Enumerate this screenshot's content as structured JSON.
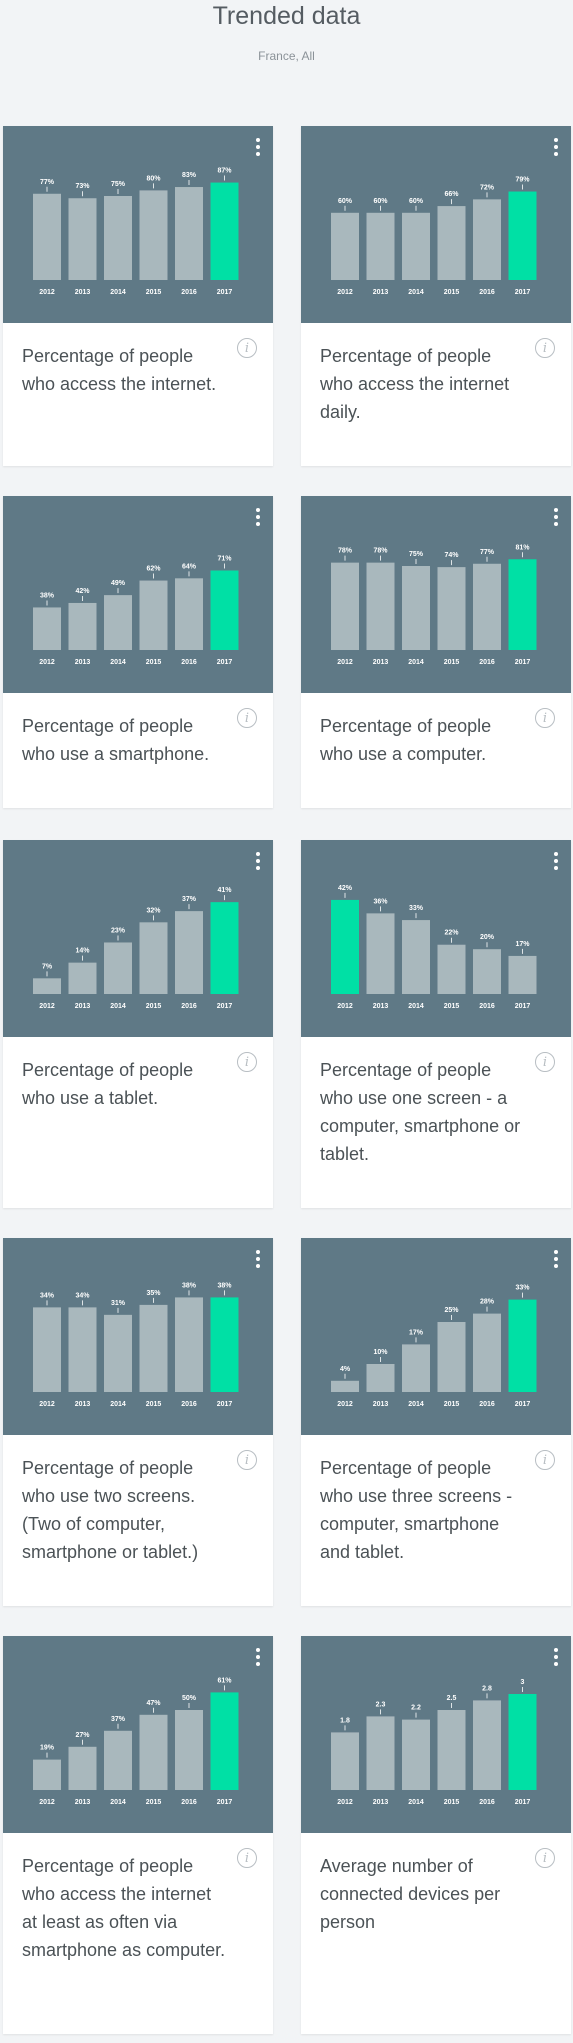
{
  "header": {
    "title": "Trended data",
    "subtitle": "France, All"
  },
  "colors": {
    "chart_bg": "#5f7986",
    "bar": "#a9b8bd",
    "highlight": "#00e0a5"
  },
  "icons": {
    "menu": "more-vert-icon",
    "info": "info-icon"
  },
  "info_symbol": "i",
  "cards": [
    {
      "description": "Percentage of people who access the internet."
    },
    {
      "description": "Percentage of people who access the internet daily."
    },
    {
      "description": "Percentage of people who use a smartphone."
    },
    {
      "description": "Percentage of people who use a computer."
    },
    {
      "description": "Percentage of people who use a tablet."
    },
    {
      "description": "Percentage of people who use one screen - a computer, smartphone or tablet."
    },
    {
      "description": "Percentage of people who use two screens. (Two of computer, smartphone or tablet.)"
    },
    {
      "description": "Percentage of people who use three screens - computer, smartphone and tablet."
    },
    {
      "description": "Percentage of people who access the internet at least as often via smartphone as computer."
    },
    {
      "description": "Average number of connected devices per person"
    }
  ],
  "chart_data": [
    {
      "type": "bar",
      "categories": [
        "2012",
        "2013",
        "2014",
        "2015",
        "2016",
        "2017"
      ],
      "values": [
        77,
        73,
        75,
        80,
        83,
        87
      ],
      "labels": [
        "77%",
        "73%",
        "75%",
        "80%",
        "83%",
        "87%"
      ],
      "highlight": 5,
      "ylim": [
        0,
        100
      ]
    },
    {
      "type": "bar",
      "categories": [
        "2012",
        "2013",
        "2014",
        "2015",
        "2016",
        "2017"
      ],
      "values": [
        60,
        60,
        60,
        66,
        72,
        79
      ],
      "labels": [
        "60%",
        "60%",
        "60%",
        "66%",
        "72%",
        "79%"
      ],
      "highlight": 5,
      "ylim": [
        0,
        100
      ]
    },
    {
      "type": "bar",
      "categories": [
        "2012",
        "2013",
        "2014",
        "2015",
        "2016",
        "2017"
      ],
      "values": [
        38,
        42,
        49,
        62,
        64,
        71
      ],
      "labels": [
        "38%",
        "42%",
        "49%",
        "62%",
        "64%",
        "71%"
      ],
      "highlight": 5,
      "ylim": [
        0,
        100
      ]
    },
    {
      "type": "bar",
      "categories": [
        "2012",
        "2013",
        "2014",
        "2015",
        "2016",
        "2017"
      ],
      "values": [
        78,
        78,
        75,
        74,
        77,
        81
      ],
      "labels": [
        "78%",
        "78%",
        "75%",
        "74%",
        "77%",
        "81%"
      ],
      "highlight": 5,
      "ylim": [
        0,
        100
      ]
    },
    {
      "type": "bar",
      "categories": [
        "2012",
        "2013",
        "2014",
        "2015",
        "2016",
        "2017"
      ],
      "values": [
        7,
        14,
        23,
        32,
        37,
        41
      ],
      "labels": [
        "7%",
        "14%",
        "23%",
        "32%",
        "37%",
        "41%"
      ],
      "highlight": 5,
      "ylim": [
        0,
        50
      ]
    },
    {
      "type": "bar",
      "categories": [
        "2012",
        "2013",
        "2014",
        "2015",
        "2016",
        "2017"
      ],
      "values": [
        42,
        36,
        33,
        22,
        20,
        17
      ],
      "labels": [
        "42%",
        "36%",
        "33%",
        "22%",
        "20%",
        "17%"
      ],
      "highlight": 0,
      "ylim": [
        0,
        50
      ]
    },
    {
      "type": "bar",
      "categories": [
        "2012",
        "2013",
        "2014",
        "2015",
        "2016",
        "2017"
      ],
      "values": [
        34,
        34,
        31,
        35,
        38,
        38
      ],
      "labels": [
        "34%",
        "34%",
        "31%",
        "35%",
        "38%",
        "38%"
      ],
      "highlight": 5,
      "ylim": [
        0,
        45
      ]
    },
    {
      "type": "bar",
      "categories": [
        "2012",
        "2013",
        "2014",
        "2015",
        "2016",
        "2017"
      ],
      "values": [
        4,
        10,
        17,
        25,
        28,
        33
      ],
      "labels": [
        "4%",
        "10%",
        "17%",
        "25%",
        "28%",
        "33%"
      ],
      "highlight": 5,
      "ylim": [
        0,
        40
      ]
    },
    {
      "type": "bar",
      "categories": [
        "2012",
        "2013",
        "2014",
        "2015",
        "2016",
        "2017"
      ],
      "values": [
        19,
        27,
        37,
        47,
        50,
        61
      ],
      "labels": [
        "19%",
        "27%",
        "37%",
        "47%",
        "50%",
        "61%"
      ],
      "highlight": 5,
      "ylim": [
        0,
        70
      ]
    },
    {
      "type": "bar",
      "categories": [
        "2012",
        "2013",
        "2014",
        "2015",
        "2016",
        "2017"
      ],
      "values": [
        1.8,
        2.3,
        2.2,
        2.5,
        2.8,
        3
      ],
      "labels": [
        "1.8",
        "2.3",
        "2.2",
        "2.5",
        "2.8",
        "3"
      ],
      "highlight": 5,
      "ylim": [
        0,
        3.5
      ]
    }
  ]
}
